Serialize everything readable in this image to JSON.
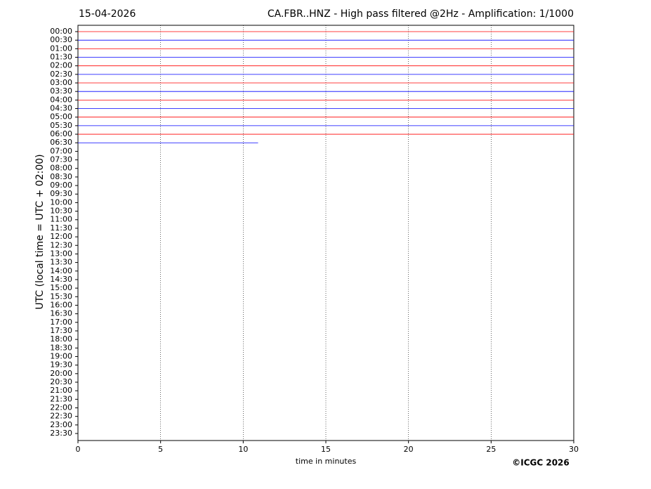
{
  "chart_data": {
    "type": "line",
    "title_left": "15-04-2026",
    "title": "CA.FBR..HNZ - High pass filtered @2Hz - Amplification: 1/1000",
    "y_label": "UTC (local time = UTC + 02:00)",
    "x_label": "time in minutes",
    "footer": "©ICGC 2026",
    "categories": [
      "00:00",
      "00:30",
      "01:00",
      "01:30",
      "02:00",
      "02:30",
      "03:00",
      "03:30",
      "04:00",
      "04:30",
      "05:00",
      "05:30",
      "06:00",
      "06:30",
      "07:00",
      "07:30",
      "08:00",
      "08:30",
      "09:00",
      "09:30",
      "10:00",
      "10:30",
      "11:00",
      "11:30",
      "12:00",
      "12:30",
      "13:00",
      "13:30",
      "14:00",
      "14:30",
      "15:00",
      "15:30",
      "16:00",
      "16:30",
      "17:00",
      "17:30",
      "18:00",
      "18:30",
      "19:00",
      "19:30",
      "20:00",
      "20:30",
      "21:00",
      "21:30",
      "22:00",
      "22:30",
      "23:00",
      "23:30"
    ],
    "trace_end": [
      30,
      30,
      30,
      30,
      30,
      30,
      30,
      30,
      30,
      30,
      30,
      30,
      30,
      10.9,
      null,
      null,
      null,
      null,
      null,
      null,
      null,
      null,
      null,
      null,
      null,
      null,
      null,
      null,
      null,
      null,
      null,
      null,
      null,
      null,
      null,
      null,
      null,
      null,
      null,
      null,
      null,
      null,
      null,
      null,
      null,
      null,
      null,
      null
    ],
    "colors": [
      "#ff0000",
      "#0000ff"
    ],
    "xlim": [
      0,
      30
    ],
    "xticks": [
      0,
      5,
      10,
      15,
      20,
      25,
      30
    ],
    "grid": true
  }
}
